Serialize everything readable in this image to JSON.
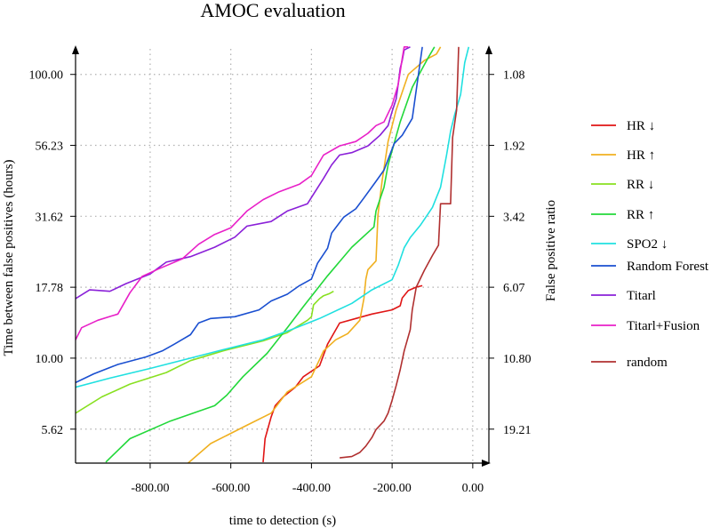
{
  "chart_data": {
    "type": "line",
    "title": "AMOC evaluation",
    "xlabel": "time to detection (s)",
    "ylabel": "Time between false positives (hours)",
    "y2label": "False positive ratio",
    "xlim": [
      -985,
      40
    ],
    "ylim_log10": [
      0.63,
      2.09
    ],
    "y_scale": "log",
    "grid": true,
    "legend_position": "right",
    "x_ticks": [
      -800,
      -600,
      -400,
      -200,
      0
    ],
    "x_tick_labels": [
      "-800.00",
      "-600.00",
      "-400.00",
      "-200.00",
      "0.00"
    ],
    "y_ticks": [
      5.62,
      10.0,
      17.78,
      31.62,
      56.23,
      100.0
    ],
    "y_tick_labels": [
      "5.62",
      "10.00",
      "17.78",
      "31.62",
      "56.23",
      "100.00"
    ],
    "y2_tick_labels": [
      "19.21",
      "10.80",
      "6.07",
      "3.42",
      "1.92",
      "1.08"
    ],
    "series": [
      {
        "name": "HR ↓",
        "color": "#e01515",
        "points": [
          [
            -520,
            4.3
          ],
          [
            -515,
            5.2
          ],
          [
            -500,
            6.2
          ],
          [
            -490,
            6.8
          ],
          [
            -470,
            7.3
          ],
          [
            -440,
            7.9
          ],
          [
            -420,
            8.6
          ],
          [
            -380,
            9.4
          ],
          [
            -360,
            11.2
          ],
          [
            -330,
            13.3
          ],
          [
            -290,
            13.8
          ],
          [
            -250,
            14.3
          ],
          [
            -200,
            14.8
          ],
          [
            -180,
            15.3
          ],
          [
            -175,
            16.3
          ],
          [
            -160,
            17.3
          ],
          [
            -140,
            17.8
          ],
          [
            -125,
            18.0
          ]
        ]
      },
      {
        "name": "HR ↑",
        "color": "#f0b020",
        "points": [
          [
            -720,
            4.1
          ],
          [
            -650,
            5.0
          ],
          [
            -560,
            5.8
          ],
          [
            -500,
            6.4
          ],
          [
            -460,
            7.6
          ],
          [
            -400,
            8.6
          ],
          [
            -370,
            10.6
          ],
          [
            -340,
            11.6
          ],
          [
            -310,
            12.2
          ],
          [
            -280,
            13.6
          ],
          [
            -270,
            16.2
          ],
          [
            -265,
            19.0
          ],
          [
            -260,
            20.5
          ],
          [
            -240,
            22.0
          ],
          [
            -235,
            32.0
          ],
          [
            -225,
            42.0
          ],
          [
            -210,
            58.0
          ],
          [
            -190,
            75.0
          ],
          [
            -160,
            100.0
          ],
          [
            -120,
            112.0
          ],
          [
            -90,
            118.0
          ],
          [
            -80,
            125.0
          ]
        ]
      },
      {
        "name": "RR ↓",
        "color": "#88e020",
        "points": [
          [
            -985,
            6.4
          ],
          [
            -920,
            7.3
          ],
          [
            -850,
            8.1
          ],
          [
            -760,
            8.9
          ],
          [
            -700,
            9.8
          ],
          [
            -620,
            10.6
          ],
          [
            -520,
            11.5
          ],
          [
            -460,
            12.3
          ],
          [
            -410,
            13.6
          ],
          [
            -400,
            14.0
          ],
          [
            -395,
            15.4
          ],
          [
            -380,
            16.2
          ],
          [
            -370,
            16.6
          ],
          [
            -355,
            16.9
          ],
          [
            -345,
            17.2
          ]
        ]
      },
      {
        "name": "RR ↑",
        "color": "#22d83a",
        "points": [
          [
            -910,
            4.3
          ],
          [
            -850,
            5.2
          ],
          [
            -750,
            6.0
          ],
          [
            -640,
            6.8
          ],
          [
            -610,
            7.4
          ],
          [
            -570,
            8.6
          ],
          [
            -510,
            10.4
          ],
          [
            -460,
            12.8
          ],
          [
            -420,
            15.2
          ],
          [
            -360,
            19.5
          ],
          [
            -300,
            24.6
          ],
          [
            -245,
            29.0
          ],
          [
            -240,
            33.0
          ],
          [
            -220,
            40.0
          ],
          [
            -210,
            48.0
          ],
          [
            -180,
            68.0
          ],
          [
            -150,
            90.0
          ],
          [
            -125,
            105.0
          ],
          [
            -110,
            115.0
          ],
          [
            -95,
            125.0
          ]
        ]
      },
      {
        "name": "SPO2 ↓",
        "color": "#20e0e0",
        "points": [
          [
            -985,
            7.9
          ],
          [
            -900,
            8.5
          ],
          [
            -800,
            9.2
          ],
          [
            -700,
            10.0
          ],
          [
            -620,
            10.7
          ],
          [
            -520,
            11.6
          ],
          [
            -450,
            12.6
          ],
          [
            -380,
            13.8
          ],
          [
            -300,
            15.6
          ],
          [
            -250,
            17.4
          ],
          [
            -200,
            18.9
          ],
          [
            -185,
            21.2
          ],
          [
            -170,
            24.5
          ],
          [
            -155,
            26.6
          ],
          [
            -130,
            29.4
          ],
          [
            -100,
            34.0
          ],
          [
            -80,
            40.0
          ],
          [
            -65,
            52.0
          ],
          [
            -55,
            63.0
          ],
          [
            -45,
            72.0
          ],
          [
            -30,
            85.0
          ],
          [
            -20,
            110.0
          ],
          [
            -10,
            125.0
          ]
        ]
      },
      {
        "name": "Random Forest",
        "color": "#1a4fd0",
        "points": [
          [
            -985,
            8.2
          ],
          [
            -940,
            8.8
          ],
          [
            -880,
            9.5
          ],
          [
            -810,
            10.1
          ],
          [
            -770,
            10.6
          ],
          [
            -740,
            11.2
          ],
          [
            -700,
            12.1
          ],
          [
            -680,
            13.3
          ],
          [
            -650,
            13.8
          ],
          [
            -590,
            14.0
          ],
          [
            -530,
            14.8
          ],
          [
            -500,
            15.9
          ],
          [
            -460,
            16.8
          ],
          [
            -430,
            18.0
          ],
          [
            -400,
            19.0
          ],
          [
            -385,
            21.6
          ],
          [
            -360,
            24.4
          ],
          [
            -350,
            27.6
          ],
          [
            -320,
            31.4
          ],
          [
            -290,
            33.6
          ],
          [
            -270,
            36.7
          ],
          [
            -240,
            42.0
          ],
          [
            -220,
            46.0
          ],
          [
            -195,
            57.0
          ],
          [
            -175,
            61.0
          ],
          [
            -150,
            70.0
          ],
          [
            -125,
            125.0
          ]
        ]
      },
      {
        "name": "Titarl",
        "color": "#8a20d8",
        "points": [
          [
            -985,
            16.2
          ],
          [
            -950,
            17.4
          ],
          [
            -900,
            17.2
          ],
          [
            -860,
            18.3
          ],
          [
            -800,
            19.8
          ],
          [
            -760,
            21.8
          ],
          [
            -700,
            22.8
          ],
          [
            -640,
            24.6
          ],
          [
            -590,
            26.7
          ],
          [
            -560,
            29.2
          ],
          [
            -500,
            30.3
          ],
          [
            -460,
            33.0
          ],
          [
            -410,
            35.0
          ],
          [
            -370,
            43.0
          ],
          [
            -350,
            48.0
          ],
          [
            -330,
            52.0
          ],
          [
            -300,
            53.0
          ],
          [
            -260,
            56.0
          ],
          [
            -230,
            61.0
          ],
          [
            -210,
            66.0
          ],
          [
            -200,
            74.0
          ],
          [
            -190,
            82.0
          ],
          [
            -185,
            92.0
          ],
          [
            -180,
            105.0
          ],
          [
            -175,
            112.0
          ],
          [
            -170,
            122.0
          ],
          [
            -155,
            125.0
          ]
        ]
      },
      {
        "name": "Titarl+Fusion",
        "color": "#e820c8",
        "points": [
          [
            -985,
            11.6
          ],
          [
            -970,
            12.8
          ],
          [
            -930,
            13.6
          ],
          [
            -880,
            14.3
          ],
          [
            -850,
            17.0
          ],
          [
            -820,
            19.4
          ],
          [
            -780,
            20.6
          ],
          [
            -720,
            22.4
          ],
          [
            -680,
            25.2
          ],
          [
            -640,
            27.3
          ],
          [
            -600,
            28.8
          ],
          [
            -560,
            33.0
          ],
          [
            -520,
            36.2
          ],
          [
            -480,
            38.6
          ],
          [
            -430,
            41.0
          ],
          [
            -400,
            44.0
          ],
          [
            -370,
            52.0
          ],
          [
            -330,
            56.0
          ],
          [
            -290,
            58.0
          ],
          [
            -260,
            62.0
          ],
          [
            -240,
            66.0
          ],
          [
            -220,
            68.0
          ],
          [
            -200,
            78.0
          ],
          [
            -185,
            92.0
          ],
          [
            -180,
            102.0
          ],
          [
            -175,
            114.0
          ],
          [
            -170,
            125.0
          ],
          [
            -160,
            125.0
          ]
        ]
      },
      {
        "name": "random",
        "color": "#b03030",
        "points": [
          [
            -330,
            4.45
          ],
          [
            -300,
            4.5
          ],
          [
            -280,
            4.65
          ],
          [
            -265,
            4.9
          ],
          [
            -250,
            5.25
          ],
          [
            -240,
            5.6
          ],
          [
            -220,
            6.0
          ],
          [
            -210,
            6.4
          ],
          [
            -200,
            7.1
          ],
          [
            -190,
            8.0
          ],
          [
            -180,
            9.1
          ],
          [
            -170,
            10.6
          ],
          [
            -155,
            12.6
          ],
          [
            -150,
            14.8
          ],
          [
            -140,
            17.8
          ],
          [
            -120,
            20.4
          ],
          [
            -100,
            23.0
          ],
          [
            -85,
            25.0
          ],
          [
            -80,
            35.0
          ],
          [
            -55,
            35.0
          ],
          [
            -50,
            60.0
          ],
          [
            -40,
            75.0
          ],
          [
            -35,
            125.0
          ]
        ]
      }
    ]
  }
}
